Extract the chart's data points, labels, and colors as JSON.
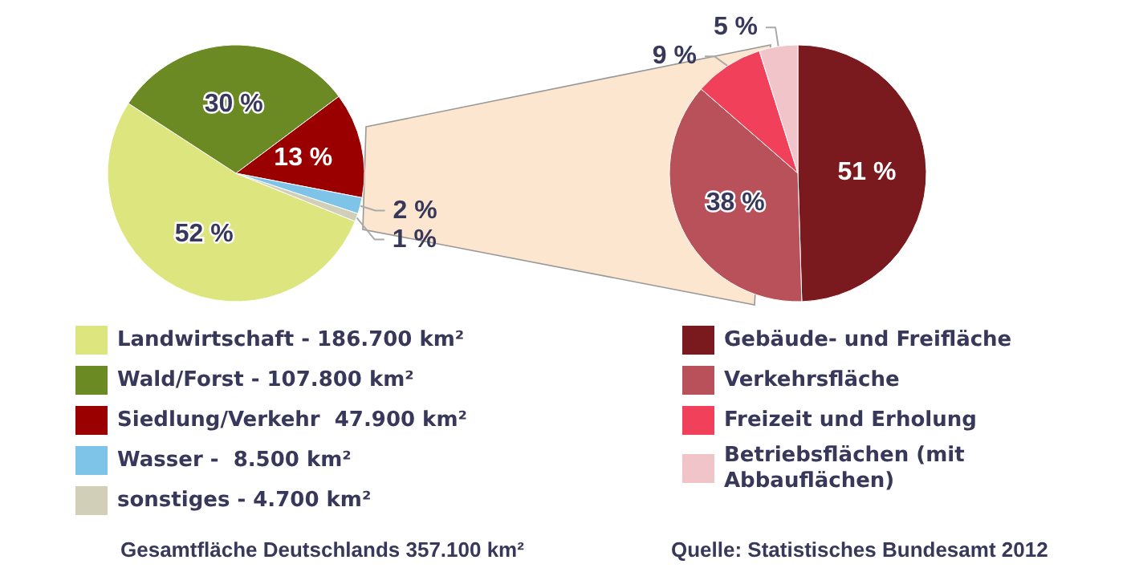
{
  "chart_data": [
    {
      "type": "pie",
      "categories": [
        "Landwirtschaft - 186.700 km²",
        "Wald/Forst - 107.800 km²",
        "Siedlung/Verkehr  47.900 km²",
        "Wasser -  8.500 km²",
        "sonstiges - 4.700 km²"
      ],
      "values": [
        52,
        30,
        13,
        2,
        1
      ],
      "value_labels": [
        "52 %",
        "30 %",
        "13 %",
        "2 %",
        "1 %"
      ],
      "colors": [
        "#dde57f",
        "#6b8a23",
        "#9a0000",
        "#7ec4e8",
        "#d1cfb8"
      ],
      "legend": "bottom",
      "annotations": [
        "Gesamtfläche Deutschlands 357.100 km²"
      ]
    },
    {
      "type": "pie",
      "categories": [
        "Gebäude- und Freifläche",
        "Verkehrsfläche",
        "Freizeit und Erholung",
        "Betriebsflächen (mit Abbauflächen)"
      ],
      "values": [
        51,
        38,
        9,
        5
      ],
      "value_labels": [
        "51 %",
        "38 %",
        "9 %",
        "5 %"
      ],
      "colors": [
        "#7a1a1e",
        "#b8515a",
        "#f0405a",
        "#f0c4c8"
      ],
      "legend": "bottom",
      "annotations": [
        "Quelle: Statistisches Bundesamt 2012"
      ]
    }
  ]
}
